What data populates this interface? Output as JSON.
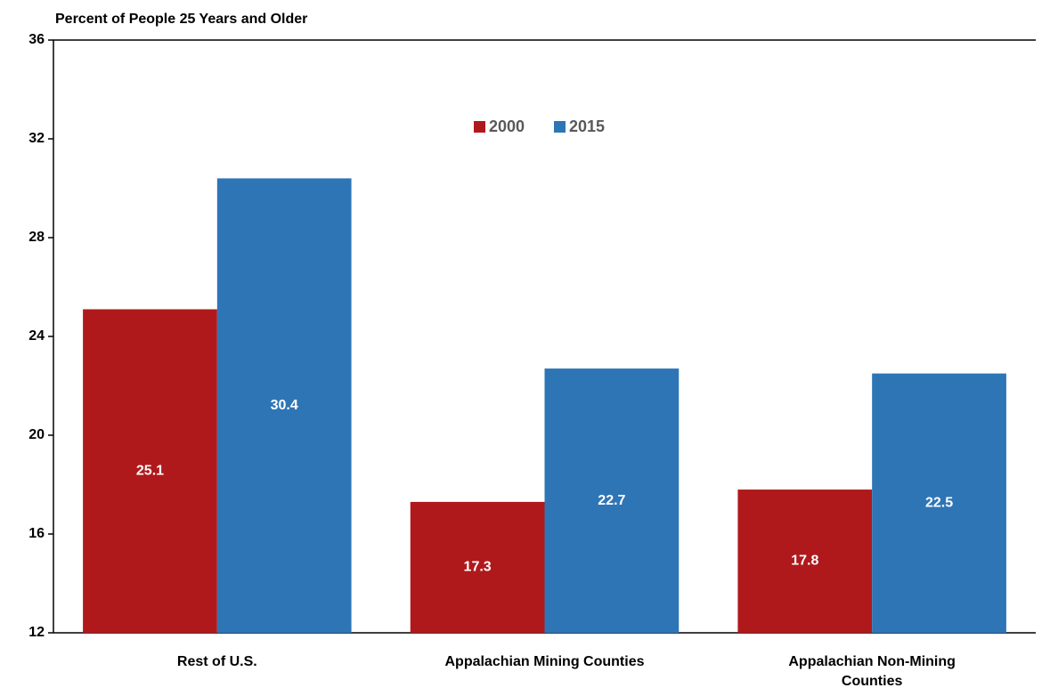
{
  "chart_data": {
    "type": "bar",
    "title": "Percent of People 25 Years and Older",
    "categories": [
      "Rest of U.S.",
      "Appalachian Mining Counties",
      "Appalachian Non-Mining Counties"
    ],
    "series": [
      {
        "name": "2000",
        "color": "#b0191c",
        "values": [
          25.1,
          17.3,
          17.8
        ]
      },
      {
        "name": "2015",
        "color": "#2e75b6",
        "values": [
          30.4,
          22.7,
          22.5
        ]
      }
    ],
    "ylim": [
      12,
      36
    ],
    "yticks": [
      12,
      16,
      20,
      24,
      28,
      32,
      36
    ],
    "grid": false,
    "legend": "top"
  }
}
